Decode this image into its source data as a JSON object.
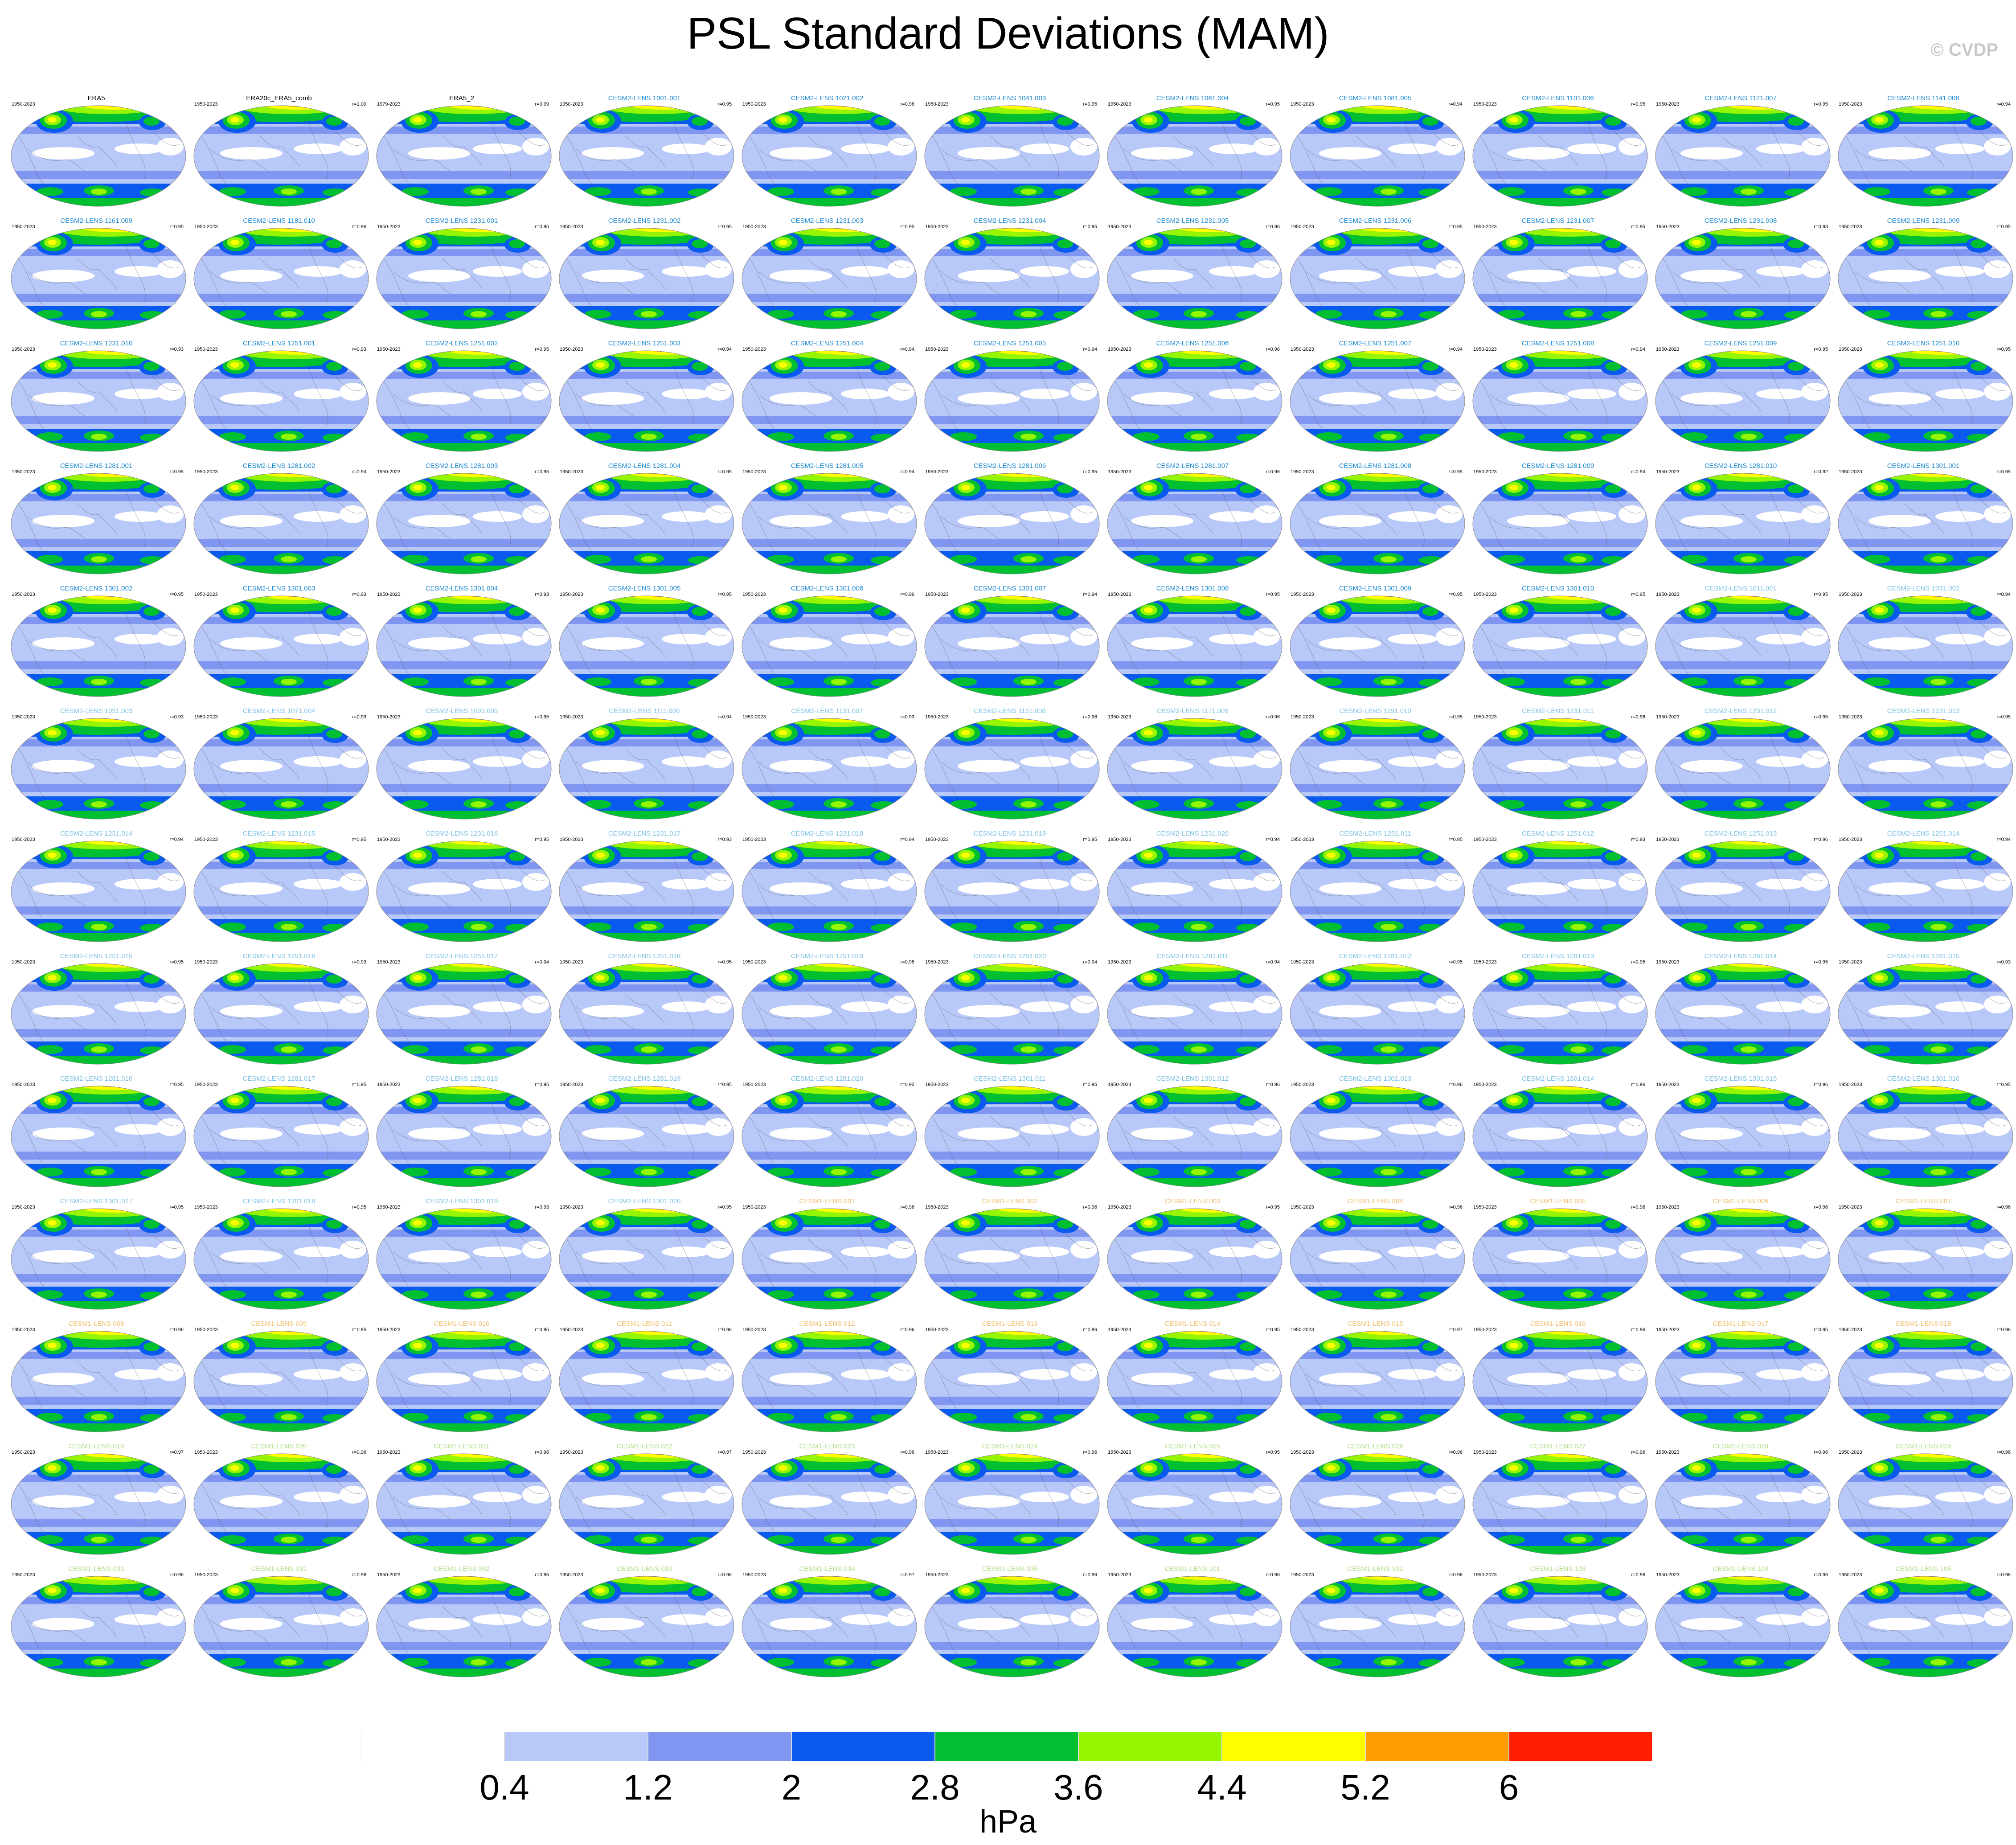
{
  "title": "PSL Standard Deviations (MAM)",
  "copyright": "© CVDP",
  "units": "hPa",
  "colorbar": {
    "ticks": [
      "0.4",
      "1.2",
      "2",
      "2.8",
      "3.6",
      "4.4",
      "5.2",
      "6"
    ],
    "colors": [
      "#ffffff",
      "#b8c8f8",
      "#8096f0",
      "#0a5af0",
      "#00c031",
      "#96f500",
      "#ffff00",
      "#ff9d00",
      "#ff1e00"
    ]
  },
  "panels": [
    {
      "name": "ERA5",
      "period": "1950-2023",
      "corr": "",
      "name_color": "#000000"
    },
    {
      "name": "ERA20c_ERA5_comb",
      "period": "1950-2023",
      "corr": "r=1.00",
      "name_color": "#000000"
    },
    {
      "name": "ERA5_2",
      "period": "1979-2023",
      "corr": "r=0.99",
      "name_color": "#000000"
    },
    {
      "name": "CESM2-LENS 1001.001",
      "period": "1950-2023",
      "corr": "r=0.95",
      "name_color": "#1e8ad2"
    },
    {
      "name": "CESM2-LENS 1021.002",
      "period": "1950-2023",
      "corr": "r=0.96",
      "name_color": "#1e8ad2"
    },
    {
      "name": "CESM2-LENS 1041.003",
      "period": "1950-2023",
      "corr": "r=0.95",
      "name_color": "#1e8ad2"
    },
    {
      "name": "CESM2-LENS 1061.004",
      "period": "1950-2023",
      "corr": "r=0.95",
      "name_color": "#1e8ad2"
    },
    {
      "name": "CESM2-LENS 1081.005",
      "period": "1950-2023",
      "corr": "r=0.94",
      "name_color": "#1e8ad2"
    },
    {
      "name": "CESM2-LENS 1101.006",
      "period": "1950-2023",
      "corr": "r=0.95",
      "name_color": "#1e8ad2"
    },
    {
      "name": "CESM2-LENS 1121.007",
      "period": "1950-2023",
      "corr": "r=0.95",
      "name_color": "#1e8ad2"
    },
    {
      "name": "CESM2-LENS 1141.008",
      "period": "1950-2023",
      "corr": "r=0.94",
      "name_color": "#1e8ad2"
    },
    {
      "name": "CESM2-LENS 1161.009",
      "period": "1950-2023",
      "corr": "r=0.95",
      "name_color": "#1e8ad2"
    },
    {
      "name": "CESM2-LENS 1181.010",
      "period": "1950-2023",
      "corr": "r=0.96",
      "name_color": "#1e8ad2"
    },
    {
      "name": "CESM2-LENS 1231.001",
      "period": "1950-2023",
      "corr": "r=0.95",
      "name_color": "#1e8ad2"
    },
    {
      "name": "CESM2-LENS 1231.002",
      "period": "1950-2023",
      "corr": "r=0.95",
      "name_color": "#1e8ad2"
    },
    {
      "name": "CESM2-LENS 1231.003",
      "period": "1950-2023",
      "corr": "r=0.95",
      "name_color": "#1e8ad2"
    },
    {
      "name": "CESM2-LENS 1231.004",
      "period": "1950-2023",
      "corr": "r=0.95",
      "name_color": "#1e8ad2"
    },
    {
      "name": "CESM2-LENS 1231.005",
      "period": "1950-2023",
      "corr": "r=0.96",
      "name_color": "#1e8ad2"
    },
    {
      "name": "CESM2-LENS 1231.006",
      "period": "1950-2023",
      "corr": "r=0.95",
      "name_color": "#1e8ad2"
    },
    {
      "name": "CESM2-LENS 1231.007",
      "period": "1950-2023",
      "corr": "r=0.95",
      "name_color": "#1e8ad2"
    },
    {
      "name": "CESM2-LENS 1231.008",
      "period": "1950-2023",
      "corr": "r=0.93",
      "name_color": "#1e8ad2"
    },
    {
      "name": "CESM2-LENS 1231.009",
      "period": "1950-2023",
      "corr": "r=0.95",
      "name_color": "#1e8ad2"
    },
    {
      "name": "CESM2-LENS 1231.010",
      "period": "1950-2023",
      "corr": "r=0.93",
      "name_color": "#1e8ad2"
    },
    {
      "name": "CESM2-LENS 1251.001",
      "period": "1950-2023",
      "corr": "r=0.93",
      "name_color": "#1e8ad2"
    },
    {
      "name": "CESM2-LENS 1251.002",
      "period": "1950-2023",
      "corr": "r=0.95",
      "name_color": "#1e8ad2"
    },
    {
      "name": "CESM2-LENS 1251.003",
      "period": "1950-2023",
      "corr": "r=0.94",
      "name_color": "#1e8ad2"
    },
    {
      "name": "CESM2-LENS 1251.004",
      "period": "1950-2023",
      "corr": "r=0.94",
      "name_color": "#1e8ad2"
    },
    {
      "name": "CESM2-LENS 1251.005",
      "period": "1950-2023",
      "corr": "r=0.94",
      "name_color": "#1e8ad2"
    },
    {
      "name": "CESM2-LENS 1251.006",
      "period": "1950-2023",
      "corr": "r=0.96",
      "name_color": "#1e8ad2"
    },
    {
      "name": "CESM2-LENS 1251.007",
      "period": "1950-2023",
      "corr": "r=0.94",
      "name_color": "#1e8ad2"
    },
    {
      "name": "CESM2-LENS 1251.008",
      "period": "1950-2023",
      "corr": "r=0.94",
      "name_color": "#1e8ad2"
    },
    {
      "name": "CESM2-LENS 1251.009",
      "period": "1950-2023",
      "corr": "r=0.95",
      "name_color": "#1e8ad2"
    },
    {
      "name": "CESM2-LENS 1251.010",
      "period": "1950-2023",
      "corr": "r=0.95",
      "name_color": "#1e8ad2"
    },
    {
      "name": "CESM2-LENS 1281.001",
      "period": "1950-2023",
      "corr": "r=0.95",
      "name_color": "#1e8ad2"
    },
    {
      "name": "CESM2-LENS 1281.002",
      "period": "1950-2023",
      "corr": "r=0.94",
      "name_color": "#1e8ad2"
    },
    {
      "name": "CESM2-LENS 1281.003",
      "period": "1950-2023",
      "corr": "r=0.95",
      "name_color": "#1e8ad2"
    },
    {
      "name": "CESM2-LENS 1281.004",
      "period": "1950-2023",
      "corr": "r=0.95",
      "name_color": "#1e8ad2"
    },
    {
      "name": "CESM2-LENS 1281.005",
      "period": "1950-2023",
      "corr": "r=0.94",
      "name_color": "#1e8ad2"
    },
    {
      "name": "CESM2-LENS 1281.006",
      "period": "1950-2023",
      "corr": "r=0.95",
      "name_color": "#1e8ad2"
    },
    {
      "name": "CESM2-LENS 1281.007",
      "period": "1950-2023",
      "corr": "r=0.96",
      "name_color": "#1e8ad2"
    },
    {
      "name": "CESM2-LENS 1281.008",
      "period": "1950-2023",
      "corr": "r=0.95",
      "name_color": "#1e8ad2"
    },
    {
      "name": "CESM2-LENS 1281.009",
      "period": "1950-2023",
      "corr": "r=0.94",
      "name_color": "#1e8ad2"
    },
    {
      "name": "CESM2-LENS 1281.010",
      "period": "1950-2023",
      "corr": "r=0.92",
      "name_color": "#1e8ad2"
    },
    {
      "name": "CESM2-LENS 1301.001",
      "period": "1950-2023",
      "corr": "r=0.95",
      "name_color": "#1e8ad2"
    },
    {
      "name": "CESM2-LENS 1301.002",
      "period": "1950-2023",
      "corr": "r=0.95",
      "name_color": "#1e8ad2"
    },
    {
      "name": "CESM2-LENS 1301.003",
      "period": "1950-2023",
      "corr": "r=0.93",
      "name_color": "#1e8ad2"
    },
    {
      "name": "CESM2-LENS 1301.004",
      "period": "1950-2023",
      "corr": "r=0.93",
      "name_color": "#1e8ad2"
    },
    {
      "name": "CESM2-LENS 1301.005",
      "period": "1950-2023",
      "corr": "r=0.95",
      "name_color": "#1e8ad2"
    },
    {
      "name": "CESM2-LENS 1301.006",
      "period": "1950-2023",
      "corr": "r=0.96",
      "name_color": "#1e8ad2"
    },
    {
      "name": "CESM2-LENS 1301.007",
      "period": "1950-2023",
      "corr": "r=0.94",
      "name_color": "#1e8ad2"
    },
    {
      "name": "CESM2-LENS 1301.008",
      "period": "1950-2023",
      "corr": "r=0.95",
      "name_color": "#1e8ad2"
    },
    {
      "name": "CESM2-LENS 1301.009",
      "period": "1950-2023",
      "corr": "r=0.95",
      "name_color": "#1e8ad2"
    },
    {
      "name": "CESM2-LENS 1301.010",
      "period": "1950-2023",
      "corr": "r=0.95",
      "name_color": "#1e8ad2"
    },
    {
      "name": "CESM2-LENS 1011.001",
      "period": "1950-2023",
      "corr": "r=0.95",
      "name_color": "#7fc3e6"
    },
    {
      "name": "CESM2-LENS 1031.002",
      "period": "1950-2023",
      "corr": "r=0.94",
      "name_color": "#7fc3e6"
    },
    {
      "name": "CESM2-LENS 1051.003",
      "period": "1950-2023",
      "corr": "r=0.93",
      "name_color": "#7fc3e6"
    },
    {
      "name": "CESM2-LENS 1071.004",
      "period": "1950-2023",
      "corr": "r=0.93",
      "name_color": "#7fc3e6"
    },
    {
      "name": "CESM2-LENS 1091.005",
      "period": "1950-2023",
      "corr": "r=0.95",
      "name_color": "#7fc3e6"
    },
    {
      "name": "CESM2-LENS 1111.006",
      "period": "1950-2023",
      "corr": "r=0.94",
      "name_color": "#7fc3e6"
    },
    {
      "name": "CESM2-LENS 1131.007",
      "period": "1950-2023",
      "corr": "r=0.93",
      "name_color": "#7fc3e6"
    },
    {
      "name": "CESM2-LENS 1151.008",
      "period": "1950-2023",
      "corr": "r=0.96",
      "name_color": "#7fc3e6"
    },
    {
      "name": "CESM2-LENS 1171.009",
      "period": "1950-2023",
      "corr": "r=0.96",
      "name_color": "#7fc3e6"
    },
    {
      "name": "CESM2-LENS 1191.010",
      "period": "1950-2023",
      "corr": "r=0.95",
      "name_color": "#7fc3e6"
    },
    {
      "name": "CESM2-LENS 1231.011",
      "period": "1950-2023",
      "corr": "r=0.96",
      "name_color": "#7fc3e6"
    },
    {
      "name": "CESM2-LENS 1231.012",
      "period": "1950-2023",
      "corr": "r=0.95",
      "name_color": "#7fc3e6"
    },
    {
      "name": "CESM2-LENS 1231.013",
      "period": "1950-2023",
      "corr": "r=0.95",
      "name_color": "#7fc3e6"
    },
    {
      "name": "CESM2-LENS 1231.014",
      "period": "1950-2023",
      "corr": "r=0.94",
      "name_color": "#7fc3e6"
    },
    {
      "name": "CESM2-LENS 1231.015",
      "period": "1950-2023",
      "corr": "r=0.95",
      "name_color": "#7fc3e6"
    },
    {
      "name": "CESM2-LENS 1231.016",
      "period": "1950-2023",
      "corr": "r=0.95",
      "name_color": "#7fc3e6"
    },
    {
      "name": "CESM2-LENS 1231.017",
      "period": "1950-2023",
      "corr": "r=0.93",
      "name_color": "#7fc3e6"
    },
    {
      "name": "CESM2-LENS 1231.018",
      "period": "1950-2023",
      "corr": "r=0.94",
      "name_color": "#7fc3e6"
    },
    {
      "name": "CESM2-LENS 1231.019",
      "period": "1950-2023",
      "corr": "r=0.95",
      "name_color": "#7fc3e6"
    },
    {
      "name": "CESM2-LENS 1231.020",
      "period": "1950-2023",
      "corr": "r=0.94",
      "name_color": "#7fc3e6"
    },
    {
      "name": "CESM2-LENS 1251.011",
      "period": "1950-2023",
      "corr": "r=0.95",
      "name_color": "#7fc3e6"
    },
    {
      "name": "CESM2-LENS 1251.012",
      "period": "1950-2023",
      "corr": "r=0.93",
      "name_color": "#7fc3e6"
    },
    {
      "name": "CESM2-LENS 1251.013",
      "period": "1950-2023",
      "corr": "r=0.96",
      "name_color": "#7fc3e6"
    },
    {
      "name": "CESM2-LENS 1251.014",
      "period": "1950-2023",
      "corr": "r=0.94",
      "name_color": "#7fc3e6"
    },
    {
      "name": "CESM2-LENS 1251.015",
      "period": "1950-2023",
      "corr": "r=0.95",
      "name_color": "#7fc3e6"
    },
    {
      "name": "CESM2-LENS 1251.016",
      "period": "1950-2023",
      "corr": "r=0.93",
      "name_color": "#7fc3e6"
    },
    {
      "name": "CESM2-LENS 1251.017",
      "period": "1950-2023",
      "corr": "r=0.94",
      "name_color": "#7fc3e6"
    },
    {
      "name": "CESM2-LENS 1251.018",
      "period": "1950-2023",
      "corr": "r=0.95",
      "name_color": "#7fc3e6"
    },
    {
      "name": "CESM2-LENS 1251.019",
      "period": "1950-2023",
      "corr": "r=0.95",
      "name_color": "#7fc3e6"
    },
    {
      "name": "CESM2-LENS 1251.020",
      "period": "1950-2023",
      "corr": "r=0.94",
      "name_color": "#7fc3e6"
    },
    {
      "name": "CESM2-LENS 1281.011",
      "period": "1950-2023",
      "corr": "r=0.94",
      "name_color": "#7fc3e6"
    },
    {
      "name": "CESM2-LENS 1281.012",
      "period": "1950-2023",
      "corr": "r=0.95",
      "name_color": "#7fc3e6"
    },
    {
      "name": "CESM2-LENS 1281.013",
      "period": "1950-2023",
      "corr": "r=0.95",
      "name_color": "#7fc3e6"
    },
    {
      "name": "CESM2-LENS 1281.014",
      "period": "1950-2023",
      "corr": "r=0.95",
      "name_color": "#7fc3e6"
    },
    {
      "name": "CESM2-LENS 1281.015",
      "period": "1950-2023",
      "corr": "r=0.93",
      "name_color": "#7fc3e6"
    },
    {
      "name": "CESM2-LENS 1281.016",
      "period": "1950-2023",
      "corr": "r=0.95",
      "name_color": "#7fc3e6"
    },
    {
      "name": "CESM2-LENS 1281.017",
      "period": "1950-2023",
      "corr": "r=0.95",
      "name_color": "#7fc3e6"
    },
    {
      "name": "CESM2-LENS 1281.018",
      "period": "1950-2023",
      "corr": "r=0.95",
      "name_color": "#7fc3e6"
    },
    {
      "name": "CESM2-LENS 1281.019",
      "period": "1950-2023",
      "corr": "r=0.95",
      "name_color": "#7fc3e6"
    },
    {
      "name": "CESM2-LENS 1281.020",
      "period": "1950-2023",
      "corr": "r=0.92",
      "name_color": "#7fc3e6"
    },
    {
      "name": "CESM2-LENS 1301.011",
      "period": "1950-2023",
      "corr": "r=0.95",
      "name_color": "#7fc3e6"
    },
    {
      "name": "CESM2-LENS 1301.012",
      "period": "1950-2023",
      "corr": "r=0.96",
      "name_color": "#7fc3e6"
    },
    {
      "name": "CESM2-LENS 1301.013",
      "period": "1950-2023",
      "corr": "r=0.96",
      "name_color": "#7fc3e6"
    },
    {
      "name": "CESM2-LENS 1301.014",
      "period": "1950-2023",
      "corr": "r=0.96",
      "name_color": "#7fc3e6"
    },
    {
      "name": "CESM2-LENS 1301.015",
      "period": "1950-2023",
      "corr": "r=0.96",
      "name_color": "#7fc3e6"
    },
    {
      "name": "CESM2-LENS 1301.016",
      "period": "1950-2023",
      "corr": "r=0.95",
      "name_color": "#7fc3e6"
    },
    {
      "name": "CESM2-LENS 1301.017",
      "period": "1950-2023",
      "corr": "r=0.95",
      "name_color": "#7fc3e6"
    },
    {
      "name": "CESM2-LENS 1301.018",
      "period": "1950-2023",
      "corr": "r=0.95",
      "name_color": "#7fc3e6"
    },
    {
      "name": "CESM2-LENS 1301.019",
      "period": "1950-2023",
      "corr": "r=0.93",
      "name_color": "#7fc3e6"
    },
    {
      "name": "CESM2-LENS 1301.020",
      "period": "1950-2023",
      "corr": "r=0.95",
      "name_color": "#7fc3e6"
    },
    {
      "name": "CESM1-LENS 001",
      "period": "1950-2023",
      "corr": "r=0.96",
      "name_color": "#f0be6e"
    },
    {
      "name": "CESM1-LENS 002",
      "period": "1950-2023",
      "corr": "r=0.96",
      "name_color": "#f0be6e"
    },
    {
      "name": "CESM1-LENS 003",
      "period": "1950-2023",
      "corr": "r=0.95",
      "name_color": "#f0be6e"
    },
    {
      "name": "CESM1-LENS 004",
      "period": "1950-2023",
      "corr": "r=0.96",
      "name_color": "#f0be6e"
    },
    {
      "name": "CESM1-LENS 005",
      "period": "1950-2023",
      "corr": "r=0.96",
      "name_color": "#f0be6e"
    },
    {
      "name": "CESM1-LENS 006",
      "period": "1950-2023",
      "corr": "r=0.96",
      "name_color": "#f0be6e"
    },
    {
      "name": "CESM1-LENS 007",
      "period": "1950-2023",
      "corr": "r=0.96",
      "name_color": "#f0be6e"
    },
    {
      "name": "CESM1-LENS 008",
      "period": "1950-2023",
      "corr": "r=0.96",
      "name_color": "#f0be6e"
    },
    {
      "name": "CESM1-LENS 009",
      "period": "1950-2023",
      "corr": "r=0.95",
      "name_color": "#f0be6e"
    },
    {
      "name": "CESM1-LENS 010",
      "period": "1950-2023",
      "corr": "r=0.95",
      "name_color": "#f0be6e"
    },
    {
      "name": "CESM1-LENS 011",
      "period": "1950-2023",
      "corr": "r=0.96",
      "name_color": "#f0be6e"
    },
    {
      "name": "CESM1-LENS 012",
      "period": "1950-2023",
      "corr": "r=0.96",
      "name_color": "#f0be6e"
    },
    {
      "name": "CESM1-LENS 013",
      "period": "1950-2023",
      "corr": "r=0.96",
      "name_color": "#f0be6e"
    },
    {
      "name": "CESM1-LENS 014",
      "period": "1950-2023",
      "corr": "r=0.95",
      "name_color": "#f0be6e"
    },
    {
      "name": "CESM1-LENS 015",
      "period": "1950-2023",
      "corr": "r=0.97",
      "name_color": "#f0be6e"
    },
    {
      "name": "CESM1-LENS 016",
      "period": "1950-2023",
      "corr": "r=0.96",
      "name_color": "#f0be6e"
    },
    {
      "name": "CESM1-LENS 017",
      "period": "1950-2023",
      "corr": "r=0.95",
      "name_color": "#f0be6e"
    },
    {
      "name": "CESM1-LENS 018",
      "period": "1950-2023",
      "corr": "r=0.96",
      "name_color": "#f0be6e"
    },
    {
      "name": "CESM1-LENS 019",
      "period": "1950-2023",
      "corr": "r=0.97",
      "name_color": "#b4dc8c"
    },
    {
      "name": "CESM1-LENS 020",
      "period": "1950-2023",
      "corr": "r=0.96",
      "name_color": "#b4dc8c"
    },
    {
      "name": "CESM1-LENS 021",
      "period": "1950-2023",
      "corr": "r=0.96",
      "name_color": "#b4dc8c"
    },
    {
      "name": "CESM1-LENS 022",
      "period": "1950-2023",
      "corr": "r=0.97",
      "name_color": "#b4dc8c"
    },
    {
      "name": "CESM1-LENS 023",
      "period": "1950-2023",
      "corr": "r=0.96",
      "name_color": "#b4dc8c"
    },
    {
      "name": "CESM1-LENS 024",
      "period": "1950-2023",
      "corr": "r=0.96",
      "name_color": "#b4dc8c"
    },
    {
      "name": "CESM1-LENS 025",
      "period": "1950-2023",
      "corr": "r=0.95",
      "name_color": "#b4dc8c"
    },
    {
      "name": "CESM1-LENS 026",
      "period": "1950-2023",
      "corr": "r=0.96",
      "name_color": "#b4dc8c"
    },
    {
      "name": "CESM1-LENS 027",
      "period": "1950-2023",
      "corr": "r=0.96",
      "name_color": "#b4dc8c"
    },
    {
      "name": "CESM1-LENS 028",
      "period": "1950-2023",
      "corr": "r=0.96",
      "name_color": "#b4dc8c"
    },
    {
      "name": "CESM1-LENS 029",
      "period": "1950-2023",
      "corr": "r=0.96",
      "name_color": "#b4dc8c"
    },
    {
      "name": "CESM1-LENS 030",
      "period": "1950-2023",
      "corr": "r=0.96",
      "name_color": "#b4dc8c"
    },
    {
      "name": "CESM1-LENS 031",
      "period": "1950-2023",
      "corr": "r=0.96",
      "name_color": "#b4dc8c"
    },
    {
      "name": "CESM1-LENS 032",
      "period": "1950-2023",
      "corr": "r=0.95",
      "name_color": "#b4dc8c"
    },
    {
      "name": "CESM1-LENS 033",
      "period": "1950-2023",
      "corr": "r=0.96",
      "name_color": "#b4dc8c"
    },
    {
      "name": "CESM1-LENS 034",
      "period": "1950-2023",
      "corr": "r=0.97",
      "name_color": "#b4dc8c"
    },
    {
      "name": "CESM1-LENS 035",
      "period": "1950-2023",
      "corr": "r=0.96",
      "name_color": "#b4dc8c"
    },
    {
      "name": "CESM1-LENS 101",
      "period": "1950-2023",
      "corr": "r=0.96",
      "name_color": "#b4dc8c"
    },
    {
      "name": "CESM1-LENS 102",
      "period": "1950-2023",
      "corr": "r=0.96",
      "name_color": "#b4dc8c"
    },
    {
      "name": "CESM1-LENS 103",
      "period": "1950-2023",
      "corr": "r=0.96",
      "name_color": "#b4dc8c"
    },
    {
      "name": "CESM1-LENS 104",
      "period": "1950-2023",
      "corr": "r=0.96",
      "name_color": "#b4dc8c"
    },
    {
      "name": "CESM1-LENS 105",
      "period": "1950-2023",
      "corr": "r=0.96",
      "name_color": "#b4dc8c"
    }
  ]
}
